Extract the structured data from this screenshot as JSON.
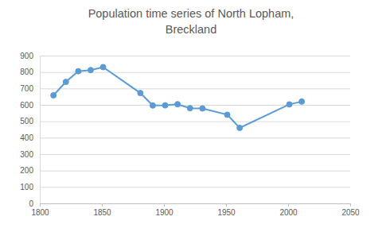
{
  "chart_data": {
    "type": "line",
    "title": "Population time series of North Lopham, Breckland",
    "x": [
      1811,
      1821,
      1831,
      1841,
      1851,
      1881,
      1891,
      1901,
      1911,
      1921,
      1931,
      1951,
      1961,
      2001,
      2011
    ],
    "values": [
      658,
      740,
      805,
      812,
      830,
      672,
      596,
      597,
      604,
      580,
      578,
      540,
      460,
      603,
      620
    ],
    "color": "#5b9bd5",
    "marker": "circle",
    "line_style": "solid",
    "xlim": [
      1800,
      2050
    ],
    "xticks": [
      1800,
      1850,
      1900,
      1950,
      2000,
      2050
    ],
    "ylim": [
      0,
      900
    ],
    "yticks": [
      0,
      100,
      200,
      300,
      400,
      500,
      600,
      700,
      800,
      900
    ],
    "grid": true
  }
}
